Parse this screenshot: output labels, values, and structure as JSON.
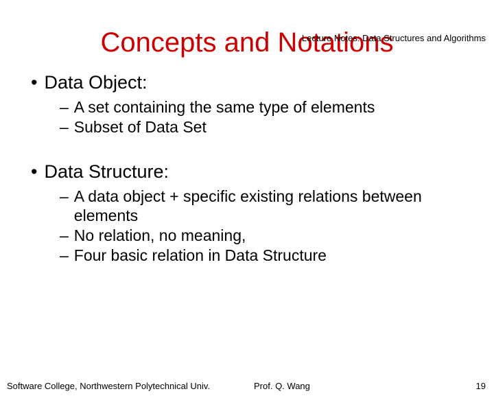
{
  "header": {
    "course_label": "Lecture Notes: Data Structures and Algorithms"
  },
  "title": "Concepts and Notations",
  "sections": {
    "section1": {
      "heading": "Data Object:",
      "sub1": "A set containing the same type of elements",
      "sub2": "Subset of Data Set"
    },
    "section2": {
      "heading": "Data Structure:",
      "sub1": "A data object + specific existing relations between elements",
      "sub2": "No relation, no meaning,",
      "sub3": "Four basic relation in Data Structure"
    }
  },
  "footer": {
    "left": "Software College, Northwestern Polytechnical Univ.",
    "center": "Prof. Q. Wang",
    "page_number": "19"
  },
  "styling": {
    "title_color": "#cc0000",
    "text_color": "#000000",
    "background_color": "#ffffff",
    "title_fontsize": 40,
    "bullet_fontsize": 27,
    "subitem_fontsize": 23,
    "header_fontsize": 13,
    "footer_fontsize": 13,
    "header_font_family": "Comic Sans MS",
    "body_font_family": "Arial"
  }
}
